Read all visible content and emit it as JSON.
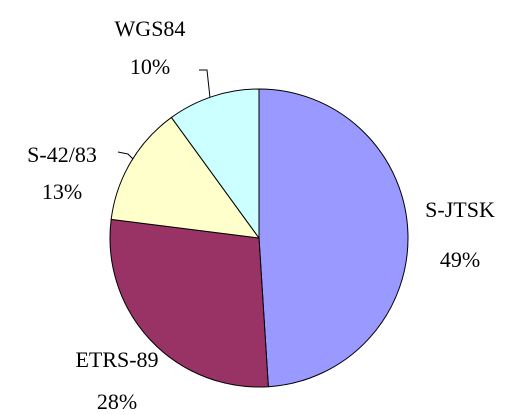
{
  "chart_data": {
    "type": "pie",
    "categories": [
      "S-JTSK",
      "ETRS-89",
      "S-42/83",
      "WGS84"
    ],
    "values": [
      49,
      28,
      13,
      10
    ],
    "value_labels": [
      "49%",
      "28%",
      "13%",
      "10%"
    ],
    "colors": [
      "#9999ff",
      "#993366",
      "#ffffcc",
      "#ccffff"
    ]
  }
}
